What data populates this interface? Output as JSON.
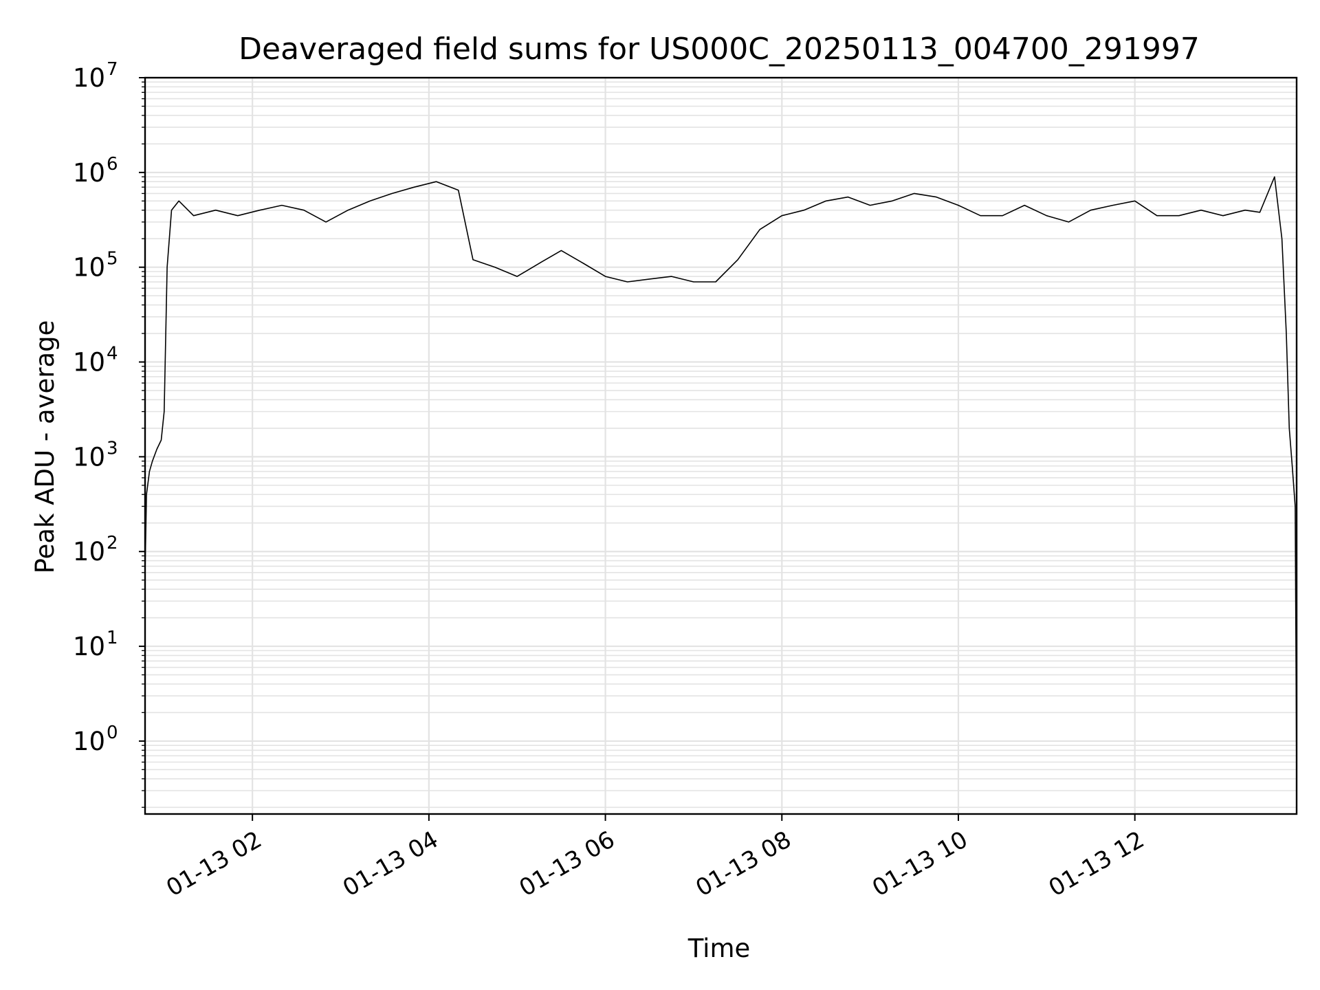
{
  "chart_data": {
    "type": "line",
    "title": "Deaveraged field sums for US000C_20250113_004700_291997",
    "xlabel": "Time",
    "ylabel": "Peak ADU - average",
    "yscale": "log",
    "ylim": [
      0.17,
      10000000
    ],
    "xlim": [
      "2025-01-13T00:47",
      "2025-01-13T13:50"
    ],
    "grid": true,
    "line_color": "#000000",
    "grid_color": "#e3e3e3",
    "x_tick_labels": [
      "01-13 02",
      "01-13 04",
      "01-13 06",
      "01-13 08",
      "01-13 10",
      "01-13 12"
    ],
    "x_tick_times": [
      "2025-01-13T02:00",
      "2025-01-13T04:00",
      "2025-01-13T06:00",
      "2025-01-13T08:00",
      "2025-01-13T10:00",
      "2025-01-13T12:00"
    ],
    "y_tick_labels": [
      {
        "base": "10",
        "exp": "0",
        "value": 1
      },
      {
        "base": "10",
        "exp": "1",
        "value": 10
      },
      {
        "base": "10",
        "exp": "2",
        "value": 100
      },
      {
        "base": "10",
        "exp": "3",
        "value": 1000
      },
      {
        "base": "10",
        "exp": "4",
        "value": 10000
      },
      {
        "base": "10",
        "exp": "5",
        "value": 100000
      },
      {
        "base": "10",
        "exp": "6",
        "value": 1000000
      },
      {
        "base": "10",
        "exp": "7",
        "value": 10000000
      }
    ],
    "series": [
      {
        "x": [
          "2025-01-13T00:47",
          "2025-01-13T00:48",
          "2025-01-13T00:50",
          "2025-01-13T00:52",
          "2025-01-13T00:55",
          "2025-01-13T00:58",
          "2025-01-13T01:00",
          "2025-01-13T01:02",
          "2025-01-13T01:05",
          "2025-01-13T01:10",
          "2025-01-13T01:20",
          "2025-01-13T01:35",
          "2025-01-13T01:50",
          "2025-01-13T02:05",
          "2025-01-13T02:20",
          "2025-01-13T02:35",
          "2025-01-13T02:50",
          "2025-01-13T03:05",
          "2025-01-13T03:20",
          "2025-01-13T03:35",
          "2025-01-13T03:50",
          "2025-01-13T04:05",
          "2025-01-13T04:20",
          "2025-01-13T04:30",
          "2025-01-13T04:45",
          "2025-01-13T05:00",
          "2025-01-13T05:15",
          "2025-01-13T05:30",
          "2025-01-13T05:45",
          "2025-01-13T06:00",
          "2025-01-13T06:15",
          "2025-01-13T06:30",
          "2025-01-13T06:45",
          "2025-01-13T07:00",
          "2025-01-13T07:15",
          "2025-01-13T07:30",
          "2025-01-13T07:45",
          "2025-01-13T08:00",
          "2025-01-13T08:15",
          "2025-01-13T08:30",
          "2025-01-13T08:45",
          "2025-01-13T09:00",
          "2025-01-13T09:15",
          "2025-01-13T09:30",
          "2025-01-13T09:45",
          "2025-01-13T10:00",
          "2025-01-13T10:15",
          "2025-01-13T10:30",
          "2025-01-13T10:45",
          "2025-01-13T11:00",
          "2025-01-13T11:15",
          "2025-01-13T11:30",
          "2025-01-13T11:45",
          "2025-01-13T12:00",
          "2025-01-13T12:15",
          "2025-01-13T12:30",
          "2025-01-13T12:45",
          "2025-01-13T13:00",
          "2025-01-13T13:15",
          "2025-01-13T13:25",
          "2025-01-13T13:35",
          "2025-01-13T13:40",
          "2025-01-13T13:43",
          "2025-01-13T13:45",
          "2025-01-13T13:47",
          "2025-01-13T13:49",
          "2025-01-13T13:50"
        ],
        "y": [
          60,
          400,
          700,
          900,
          1200,
          1500,
          3000,
          100000,
          400000,
          500000,
          350000,
          400000,
          350000,
          400000,
          450000,
          400000,
          300000,
          400000,
          500000,
          600000,
          700000,
          800000,
          650000,
          120000,
          100000,
          80000,
          110000,
          150000,
          110000,
          80000,
          70000,
          75000,
          80000,
          70000,
          70000,
          120000,
          250000,
          350000,
          400000,
          500000,
          550000,
          450000,
          500000,
          600000,
          550000,
          450000,
          350000,
          350000,
          450000,
          350000,
          300000,
          400000,
          450000,
          500000,
          350000,
          350000,
          400000,
          350000,
          400000,
          380000,
          900000,
          200000,
          20000,
          2000,
          800,
          300,
          0.4
        ]
      }
    ]
  }
}
